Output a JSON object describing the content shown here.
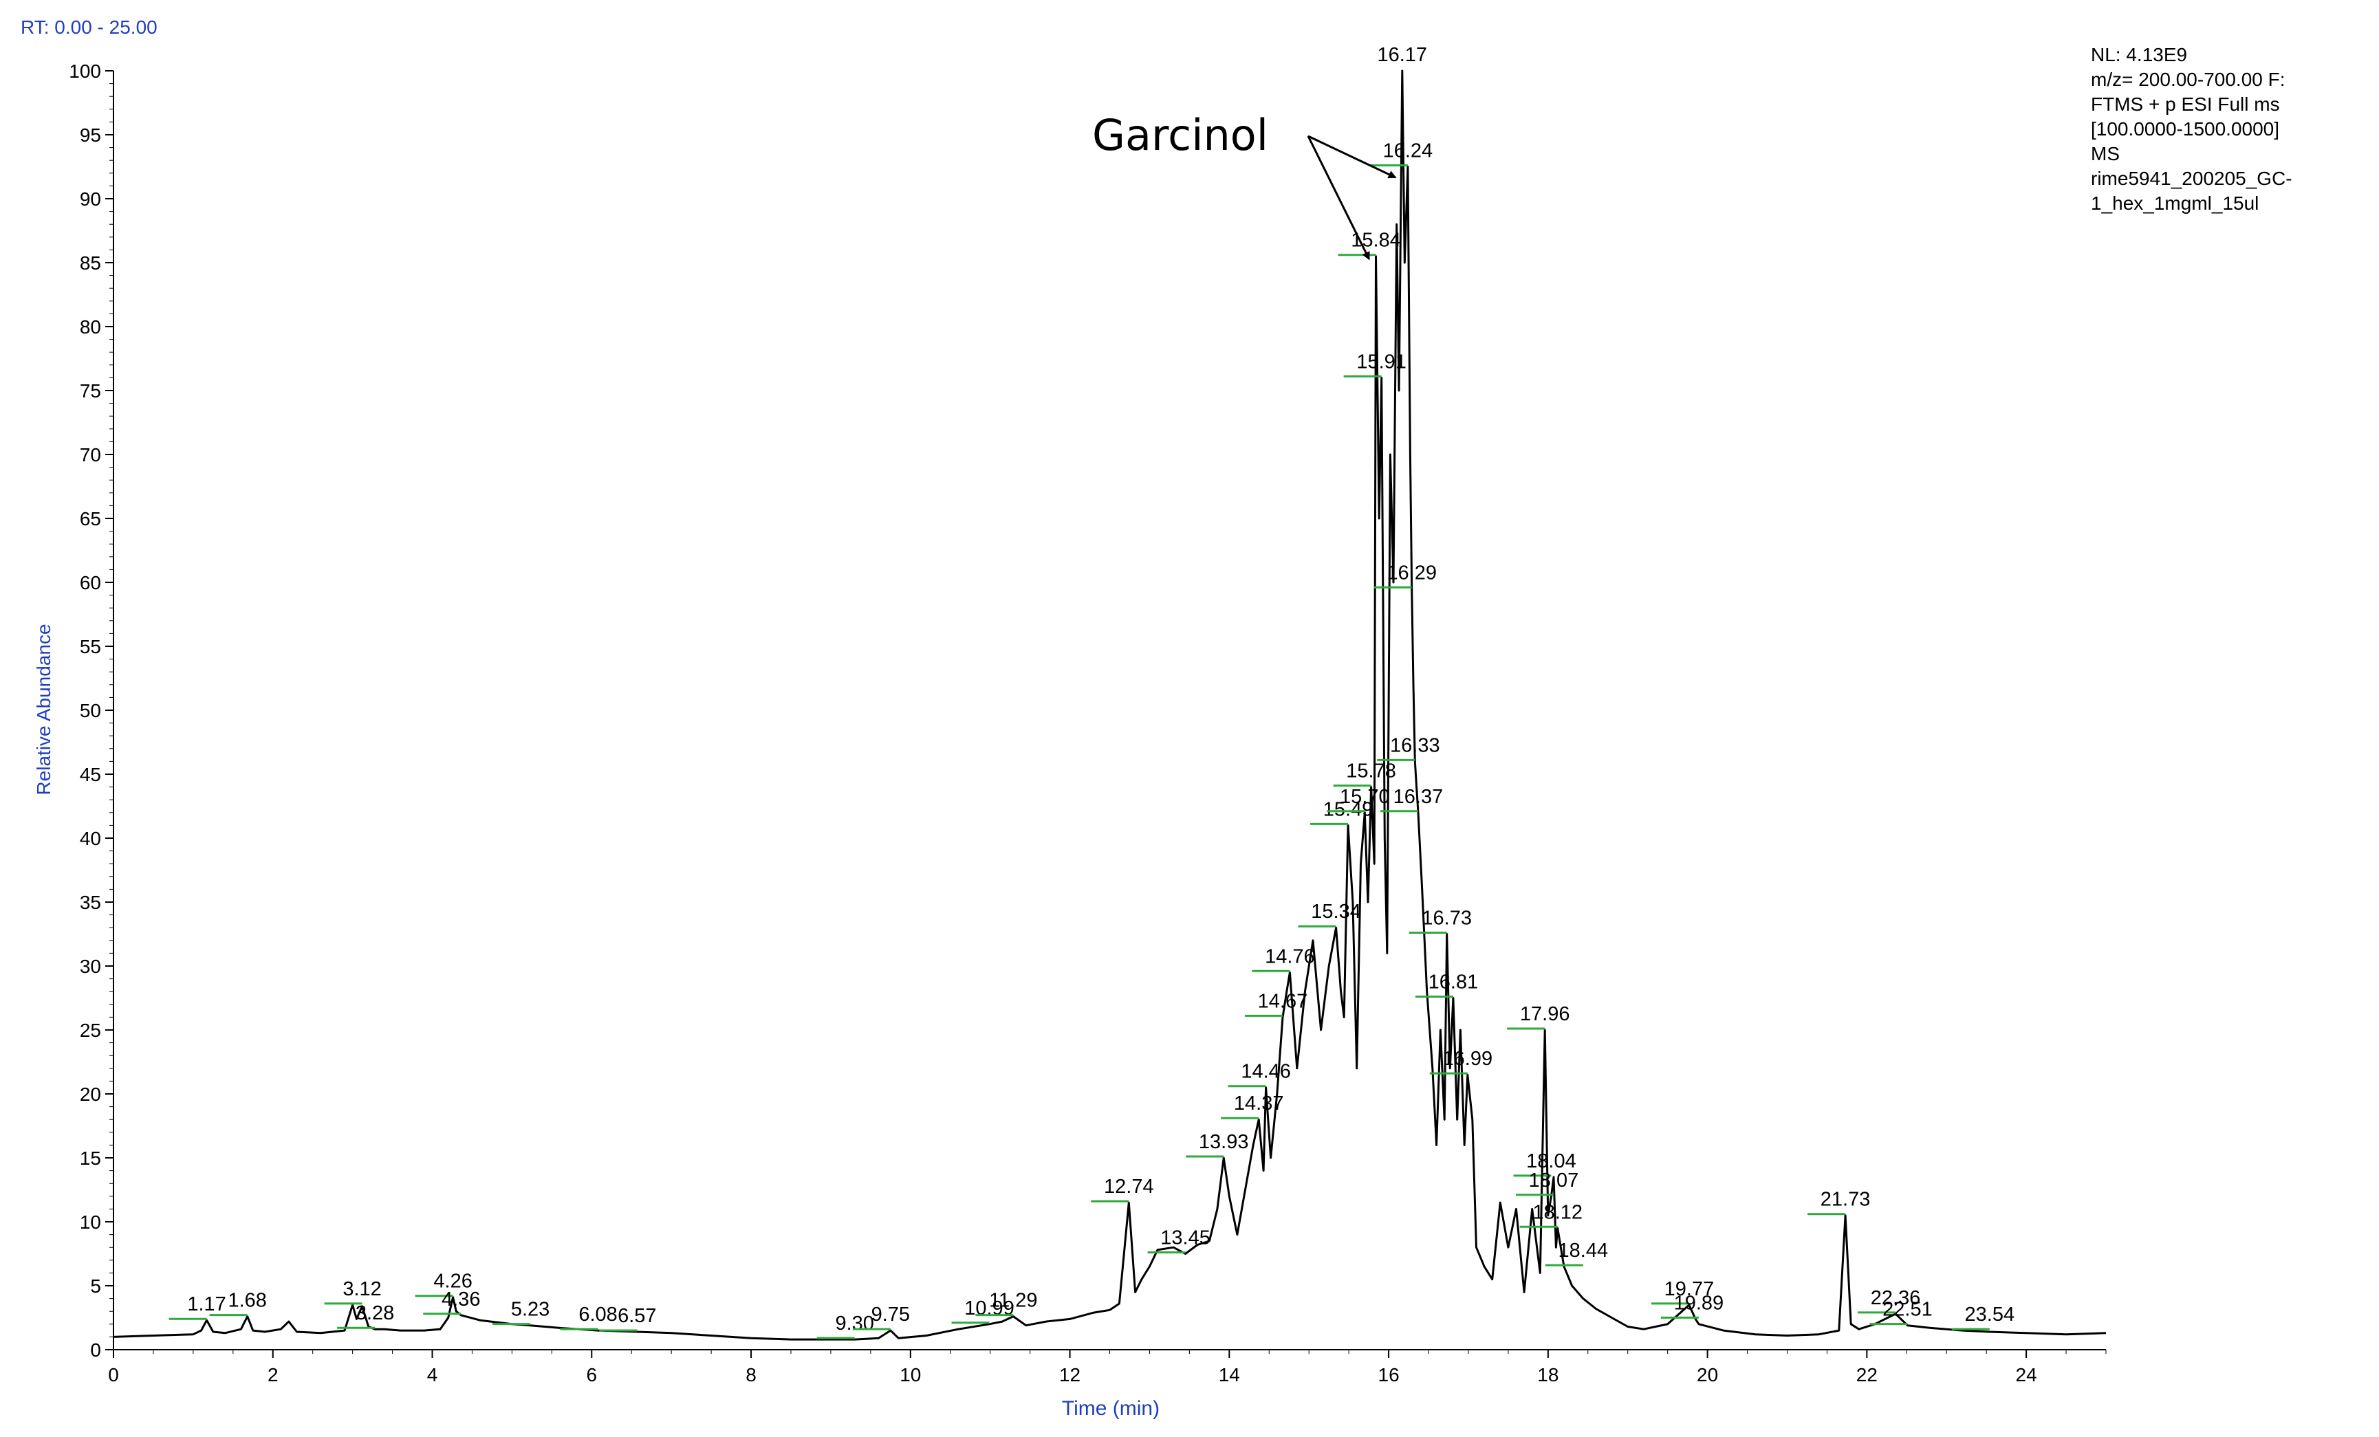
{
  "header": {
    "rt_range": "RT: 0.00 - 25.00"
  },
  "info_box": {
    "lines": [
      "NL: 4.13E9",
      "m/z= 200.00-700.00 F:",
      "FTMS + p ESI Full ms",
      "[100.0000-1500.0000]",
      "MS",
      "rime5941_200205_GC-",
      "1_hex_1mgml_15ul"
    ]
  },
  "annotation": {
    "text": "Garcinol",
    "targets_rt": [
      15.84,
      16.17
    ]
  },
  "colors": {
    "trace": "#000000",
    "axis_label": "#1f3fbf",
    "peak_marker": "#2eaa3c"
  },
  "chart_data": {
    "type": "line",
    "xlabel": "Time (min)",
    "ylabel": "Relative Abundance",
    "xlim": [
      0,
      25
    ],
    "ylim": [
      0,
      100
    ],
    "x_ticks": [
      0,
      2,
      4,
      6,
      8,
      10,
      12,
      14,
      16,
      18,
      20,
      22,
      24
    ],
    "y_ticks": [
      0,
      5,
      10,
      15,
      20,
      25,
      30,
      35,
      40,
      45,
      50,
      55,
      60,
      65,
      70,
      75,
      80,
      85,
      90,
      95,
      100
    ],
    "grid": false,
    "legend": "none",
    "series": [
      {
        "x": [
          0.0,
          0.5,
          1.0,
          1.1,
          1.17,
          1.25,
          1.4,
          1.6,
          1.68,
          1.75,
          1.9,
          2.1,
          2.2,
          2.3,
          2.6,
          2.9,
          3.0,
          3.05,
          3.12,
          3.2,
          3.28,
          3.4,
          3.6,
          3.9,
          4.1,
          4.2,
          4.26,
          4.3,
          4.36,
          4.6,
          5.0,
          5.23,
          5.6,
          6.08,
          6.57,
          7.0,
          7.5,
          8.0,
          8.5,
          9.0,
          9.3,
          9.6,
          9.75,
          9.85,
          10.2,
          10.6,
          10.99,
          11.15,
          11.29,
          11.45,
          11.7,
          12.0,
          12.3,
          12.5,
          12.62,
          12.74,
          12.82,
          12.9,
          13.0,
          13.1,
          13.3,
          13.45,
          13.6,
          13.75,
          13.85,
          13.93,
          14.0,
          14.1,
          14.2,
          14.3,
          14.37,
          14.43,
          14.46,
          14.52,
          14.6,
          14.67,
          14.72,
          14.76,
          14.85,
          14.95,
          15.05,
          15.15,
          15.25,
          15.34,
          15.4,
          15.44,
          15.49,
          15.55,
          15.6,
          15.65,
          15.7,
          15.74,
          15.78,
          15.82,
          15.84,
          15.88,
          15.91,
          15.95,
          15.98,
          16.02,
          16.06,
          16.1,
          16.13,
          16.17,
          16.2,
          16.24,
          16.27,
          16.29,
          16.31,
          16.33,
          16.35,
          16.37,
          16.42,
          16.48,
          16.55,
          16.6,
          16.65,
          16.7,
          16.73,
          16.77,
          16.81,
          16.86,
          16.9,
          16.95,
          16.99,
          17.05,
          17.1,
          17.2,
          17.3,
          17.4,
          17.5,
          17.6,
          17.7,
          17.8,
          17.9,
          17.96,
          18.0,
          18.04,
          18.07,
          18.1,
          18.12,
          18.2,
          18.3,
          18.44,
          18.6,
          18.8,
          19.0,
          19.2,
          19.5,
          19.77,
          19.85,
          19.89,
          20.2,
          20.6,
          21.0,
          21.4,
          21.65,
          21.73,
          21.8,
          21.9,
          22.1,
          22.36,
          22.51,
          22.8,
          23.2,
          23.54,
          24.0,
          24.5,
          25.0
        ],
        "y": [
          1.0,
          1.1,
          1.2,
          1.5,
          2.3,
          1.4,
          1.3,
          1.6,
          2.6,
          1.5,
          1.4,
          1.6,
          2.2,
          1.4,
          1.3,
          1.5,
          3.5,
          2.4,
          3.4,
          1.8,
          1.6,
          1.6,
          1.5,
          1.5,
          1.6,
          2.5,
          4.1,
          3.0,
          2.7,
          2.3,
          2.0,
          1.9,
          1.7,
          1.5,
          1.4,
          1.3,
          1.1,
          0.9,
          0.8,
          0.8,
          0.8,
          0.9,
          1.5,
          0.9,
          1.1,
          1.6,
          2.0,
          2.2,
          2.6,
          1.9,
          2.2,
          2.4,
          2.9,
          3.1,
          3.6,
          11.5,
          4.5,
          5.5,
          6.5,
          7.8,
          8.0,
          7.5,
          8.2,
          8.5,
          11.0,
          15.0,
          12.0,
          9.0,
          12.5,
          16.0,
          18.0,
          14.0,
          20.5,
          15.0,
          20.0,
          26.0,
          28.0,
          29.5,
          22.0,
          28.0,
          32.0,
          25.0,
          30.0,
          33.0,
          28.0,
          26.0,
          41.0,
          35.0,
          22.0,
          38.0,
          42.0,
          35.0,
          44.0,
          38.0,
          85.5,
          65.0,
          76.0,
          40.0,
          31.0,
          70.0,
          60.0,
          88.0,
          75.0,
          100.0,
          85.0,
          92.5,
          70.0,
          59.5,
          52.0,
          46.0,
          44.0,
          42.0,
          36.0,
          28.0,
          22.0,
          16.0,
          25.0,
          18.0,
          32.5,
          22.0,
          27.5,
          18.0,
          25.0,
          16.0,
          21.5,
          18.0,
          8.0,
          6.5,
          5.5,
          11.5,
          8.0,
          11.0,
          4.5,
          11.0,
          6.0,
          25.0,
          10.5,
          12.0,
          13.5,
          8.0,
          9.5,
          6.5,
          5.0,
          4.0,
          3.2,
          2.5,
          1.8,
          1.6,
          2.0,
          3.5,
          2.4,
          2.0,
          1.5,
          1.2,
          1.1,
          1.2,
          1.5,
          10.5,
          2.0,
          1.6,
          2.0,
          2.8,
          1.9,
          1.7,
          1.5,
          1.4,
          1.3,
          1.2,
          1.3
        ]
      }
    ],
    "peak_labels": [
      {
        "rt": 1.17,
        "label": "1.17",
        "y": 2.3
      },
      {
        "rt": 1.68,
        "label": "1.68",
        "y": 2.6
      },
      {
        "rt": 3.12,
        "label": "3.12",
        "y": 3.5
      },
      {
        "rt": 3.28,
        "label": "3.28",
        "y": 1.6
      },
      {
        "rt": 4.26,
        "label": "4.26",
        "y": 4.1
      },
      {
        "rt": 4.36,
        "label": "4.36",
        "y": 2.7
      },
      {
        "rt": 5.23,
        "label": "5.23",
        "y": 1.9
      },
      {
        "rt": 6.08,
        "label": "6.08",
        "y": 1.5
      },
      {
        "rt": 6.57,
        "label": "6.57",
        "y": 1.4
      },
      {
        "rt": 9.3,
        "label": "9.30",
        "y": 0.8
      },
      {
        "rt": 9.75,
        "label": "9.75",
        "y": 1.5
      },
      {
        "rt": 10.99,
        "label": "10.99",
        "y": 2.0
      },
      {
        "rt": 11.29,
        "label": "11.29",
        "y": 2.6
      },
      {
        "rt": 12.74,
        "label": "12.74",
        "y": 11.5
      },
      {
        "rt": 13.45,
        "label": "13.45",
        "y": 7.5
      },
      {
        "rt": 13.93,
        "label": "13.93",
        "y": 15.0
      },
      {
        "rt": 14.37,
        "label": "14.37",
        "y": 18.0
      },
      {
        "rt": 14.46,
        "label": "14.46",
        "y": 20.5
      },
      {
        "rt": 14.67,
        "label": "14.67",
        "y": 26.0
      },
      {
        "rt": 14.76,
        "label": "14.76",
        "y": 29.5
      },
      {
        "rt": 15.34,
        "label": "15.34",
        "y": 33.0
      },
      {
        "rt": 15.49,
        "label": "15.49",
        "y": 41.0
      },
      {
        "rt": 15.7,
        "label": "15.70",
        "y": 42.0
      },
      {
        "rt": 15.78,
        "label": "15.78",
        "y": 44.0
      },
      {
        "rt": 15.84,
        "label": "15.84",
        "y": 85.5
      },
      {
        "rt": 15.91,
        "label": "15.91",
        "y": 76.0
      },
      {
        "rt": 16.17,
        "label": "16.17",
        "y": 100.0
      },
      {
        "rt": 16.24,
        "label": "16.24",
        "y": 92.5
      },
      {
        "rt": 16.29,
        "label": "16.29",
        "y": 59.5
      },
      {
        "rt": 16.33,
        "label": "16.33",
        "y": 46.0
      },
      {
        "rt": 16.37,
        "label": "16.37",
        "y": 42.0
      },
      {
        "rt": 16.73,
        "label": "16.73",
        "y": 32.5
      },
      {
        "rt": 16.81,
        "label": "16.81",
        "y": 27.5
      },
      {
        "rt": 16.99,
        "label": "16.99",
        "y": 21.5
      },
      {
        "rt": 17.96,
        "label": "17.96",
        "y": 25.0
      },
      {
        "rt": 18.04,
        "label": "18.04",
        "y": 13.5
      },
      {
        "rt": 18.07,
        "label": "18.07",
        "y": 12.0
      },
      {
        "rt": 18.12,
        "label": "18.12",
        "y": 9.5
      },
      {
        "rt": 18.44,
        "label": "18.44",
        "y": 6.5
      },
      {
        "rt": 19.77,
        "label": "19.77",
        "y": 3.5
      },
      {
        "rt": 19.89,
        "label": "19.89",
        "y": 2.4
      },
      {
        "rt": 21.73,
        "label": "21.73",
        "y": 10.5
      },
      {
        "rt": 22.36,
        "label": "22.36",
        "y": 2.8
      },
      {
        "rt": 22.51,
        "label": "22.51",
        "y": 1.9
      },
      {
        "rt": 23.54,
        "label": "23.54",
        "y": 1.5
      }
    ]
  }
}
